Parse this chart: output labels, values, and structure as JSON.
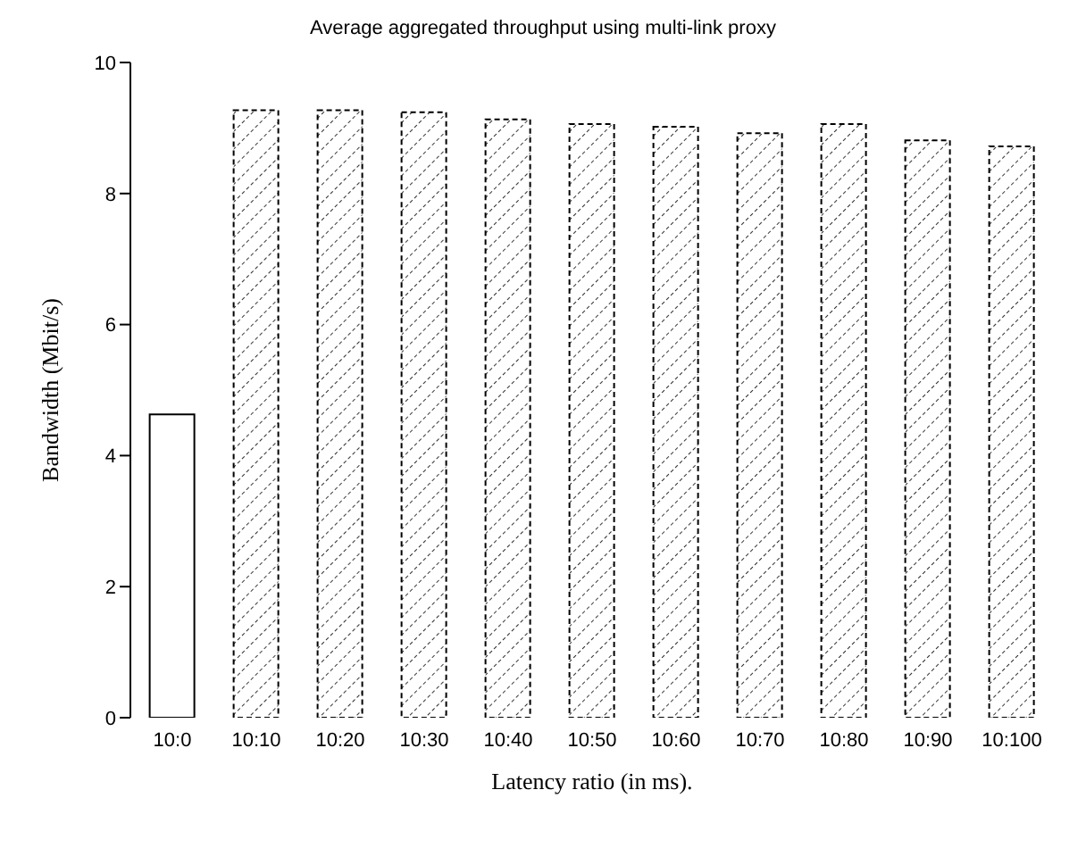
{
  "chart_data": {
    "type": "bar",
    "title": "Average aggregated throughput using multi-link proxy",
    "xlabel": "Latency ratio (in ms).",
    "ylabel": "Bandwidth (Mbit/s)",
    "categories": [
      "10:0",
      "10:10",
      "10:20",
      "10:30",
      "10:40",
      "10:50",
      "10:60",
      "10:70",
      "10:80",
      "10:90",
      "10:100"
    ],
    "values": [
      4.63,
      9.27,
      9.27,
      9.24,
      9.13,
      9.06,
      9.02,
      8.92,
      9.06,
      8.81,
      8.72
    ],
    "colors": [
      "#ffffff",
      "#000000",
      "#000000",
      "#000000",
      "#000000",
      "#000000",
      "#000000",
      "#000000",
      "#000000",
      "#000000",
      "#000000"
    ],
    "ylim": [
      0,
      10
    ],
    "yticks": [
      0,
      2,
      4,
      6,
      8,
      10
    ],
    "grid": false
  }
}
